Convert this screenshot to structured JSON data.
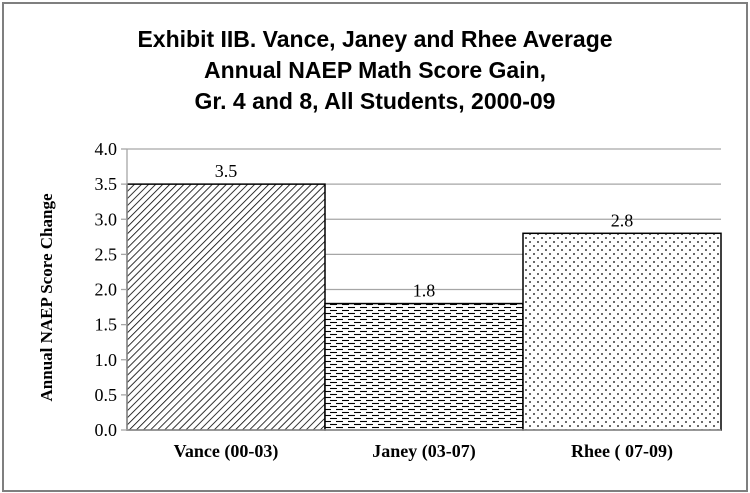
{
  "chart_data": {
    "type": "bar",
    "title_lines": [
      "Exhibit IIB. Vance, Janey and Rhee Average",
      "Annual NAEP Math Score Gain,",
      "Gr. 4 and 8, All Students, 2000-09"
    ],
    "xlabel": "",
    "ylabel": "Annual NAEP Score Change",
    "categories": [
      "Vance (00-03)",
      "Janey (03-07)",
      "Rhee ( 07-09)"
    ],
    "values": [
      3.5,
      1.8,
      2.8
    ],
    "data_labels": [
      "3.5",
      "1.8",
      "2.8"
    ],
    "ylim": [
      0,
      4.0
    ],
    "yticks": [
      "0.0",
      "0.5",
      "1.0",
      "1.5",
      "2.0",
      "2.5",
      "3.0",
      "3.5",
      "4.0"
    ],
    "grid": true,
    "legend": "none",
    "patterns": [
      "diagonal-hatch",
      "dashed-horizontal",
      "dotted"
    ],
    "colors": {
      "bar_fill": "#ffffff",
      "bar_edge": "#000000",
      "pattern": "#000000",
      "grid": "#a6a6a6",
      "frame": "#7f7f7f"
    }
  }
}
